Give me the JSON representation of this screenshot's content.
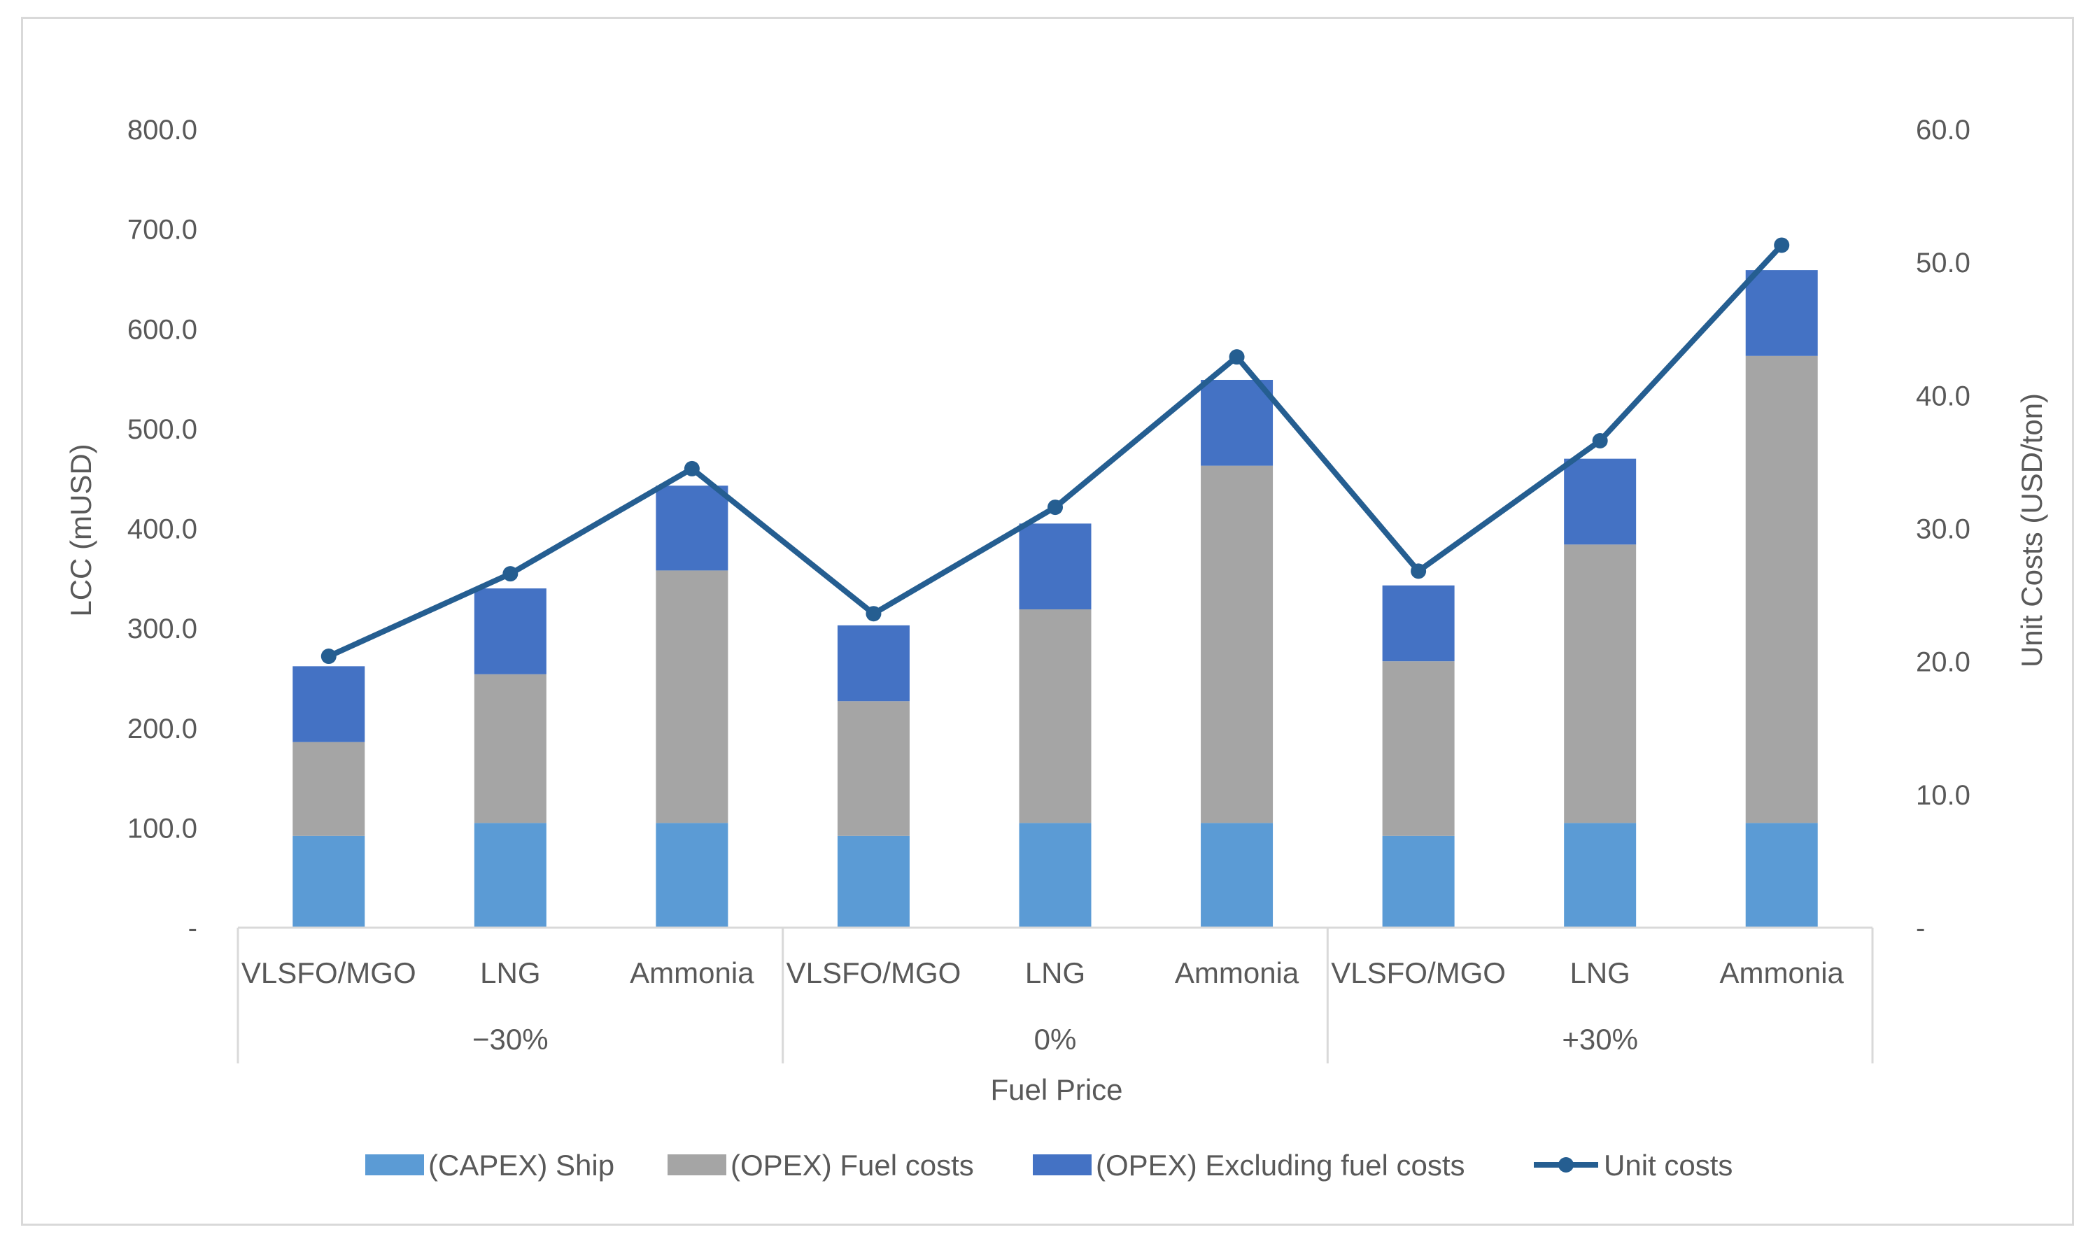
{
  "chart_data": {
    "type": "bar",
    "stacked": true,
    "title": "",
    "xlabel": "Fuel Price",
    "ylabel": "LCC (mUSD)",
    "y2label": "Unit Costs (USD/ton)",
    "ylim": [
      0,
      800
    ],
    "y2lim": [
      0,
      60
    ],
    "yticks": [
      "-",
      "100.0",
      "200.0",
      "300.0",
      "400.0",
      "500.0",
      "600.0",
      "700.0",
      "800.0"
    ],
    "y2ticks": [
      "-",
      "10.0",
      "20.0",
      "30.0",
      "40.0",
      "50.0",
      "60.0"
    ],
    "groups": [
      {
        "label": "−30%",
        "categories": [
          "VLSFO/MGO",
          "LNG",
          "Ammonia"
        ]
      },
      {
        "label": "0%",
        "categories": [
          "VLSFO/MGO",
          "LNG",
          "Ammonia"
        ]
      },
      {
        "label": "+30%",
        "categories": [
          "VLSFO/MGO",
          "LNG",
          "Ammonia"
        ]
      }
    ],
    "series": [
      {
        "name": "(CAPEX) Ship",
        "color": "#5b9bd5",
        "kind": "bar",
        "values": [
          92,
          105,
          105,
          92,
          105,
          105,
          92,
          105,
          105
        ]
      },
      {
        "name": "(OPEX) Fuel costs",
        "color": "#a5a5a5",
        "kind": "bar",
        "values": [
          94,
          149,
          253,
          135,
          214,
          358,
          175,
          279,
          468
        ]
      },
      {
        "name": "(OPEX) Excluding fuel costs",
        "color": "#4472c4",
        "kind": "bar",
        "values": [
          76,
          86,
          85,
          76,
          86,
          86,
          76,
          86,
          86
        ]
      },
      {
        "name": "Unit costs",
        "color": "#255e91",
        "kind": "line",
        "axis": "right",
        "values": [
          20.4,
          26.6,
          34.5,
          23.6,
          31.6,
          42.9,
          26.8,
          36.6,
          51.3
        ]
      }
    ],
    "legend_position": "bottom"
  }
}
